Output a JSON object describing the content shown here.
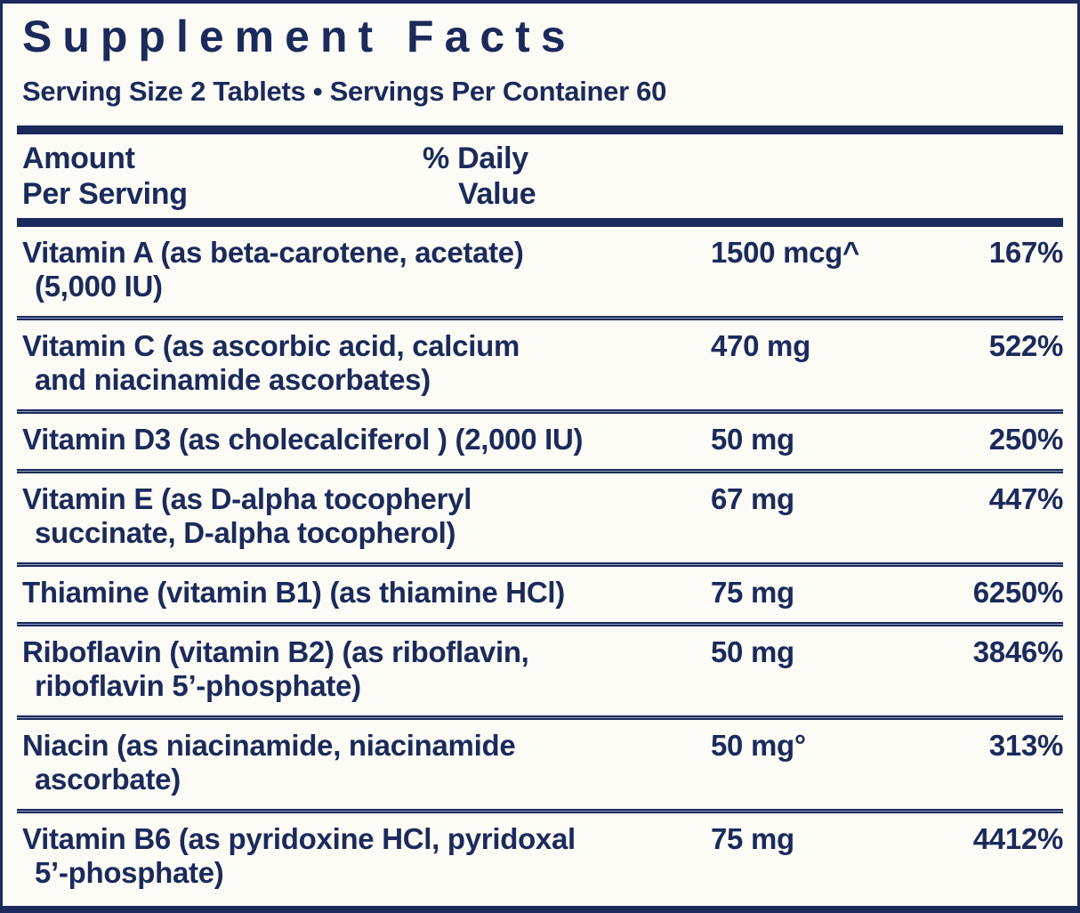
{
  "label": {
    "title": "Supplement Facts",
    "serving_line": "Serving Size 2 Tablets • Servings Per Container 60",
    "columns": {
      "amount_header_line1": "Amount",
      "amount_header_line2": "Per Serving",
      "dv_header_line1": "% Daily",
      "dv_header_line2": "Value"
    },
    "colors": {
      "navy": "#1b2a5b",
      "background": "#fcfbf6"
    },
    "rows": [
      {
        "name_line1": "Vitamin A (as beta-carotene, acetate)",
        "name_line2": "(5,000 IU)",
        "amount": "1500 mcg^",
        "daily_value": "167%"
      },
      {
        "name_line1": "Vitamin C (as ascorbic acid, calcium",
        "name_line2": "and niacinamide ascorbates)",
        "amount": "470 mg",
        "daily_value": "522%"
      },
      {
        "name_line1": "Vitamin D3 (as cholecalciferol ) (2,000 IU)",
        "name_line2": "",
        "amount": "50 mg",
        "daily_value": "250%"
      },
      {
        "name_line1": "Vitamin E (as D-alpha tocopheryl",
        "name_line2": "succinate, D-alpha tocopherol)",
        "amount": "67 mg",
        "daily_value": "447%"
      },
      {
        "name_line1": "Thiamine (vitamin B1) (as thiamine HCl)",
        "name_line2": "",
        "amount": "75 mg",
        "daily_value": "6250%"
      },
      {
        "name_line1": "Riboflavin (vitamin B2) (as riboflavin,",
        "name_line2": "riboflavin 5’-phosphate)",
        "amount": "50 mg",
        "daily_value": "3846%"
      },
      {
        "name_line1": "Niacin (as niacinamide, niacinamide",
        "name_line2": "ascorbate)",
        "amount": "50 mg°",
        "daily_value": "313%"
      },
      {
        "name_line1": "Vitamin B6 (as pyridoxine HCl, pyridoxal",
        "name_line2": "5’-phosphate)",
        "amount": "75 mg",
        "daily_value": "4412%"
      }
    ]
  }
}
